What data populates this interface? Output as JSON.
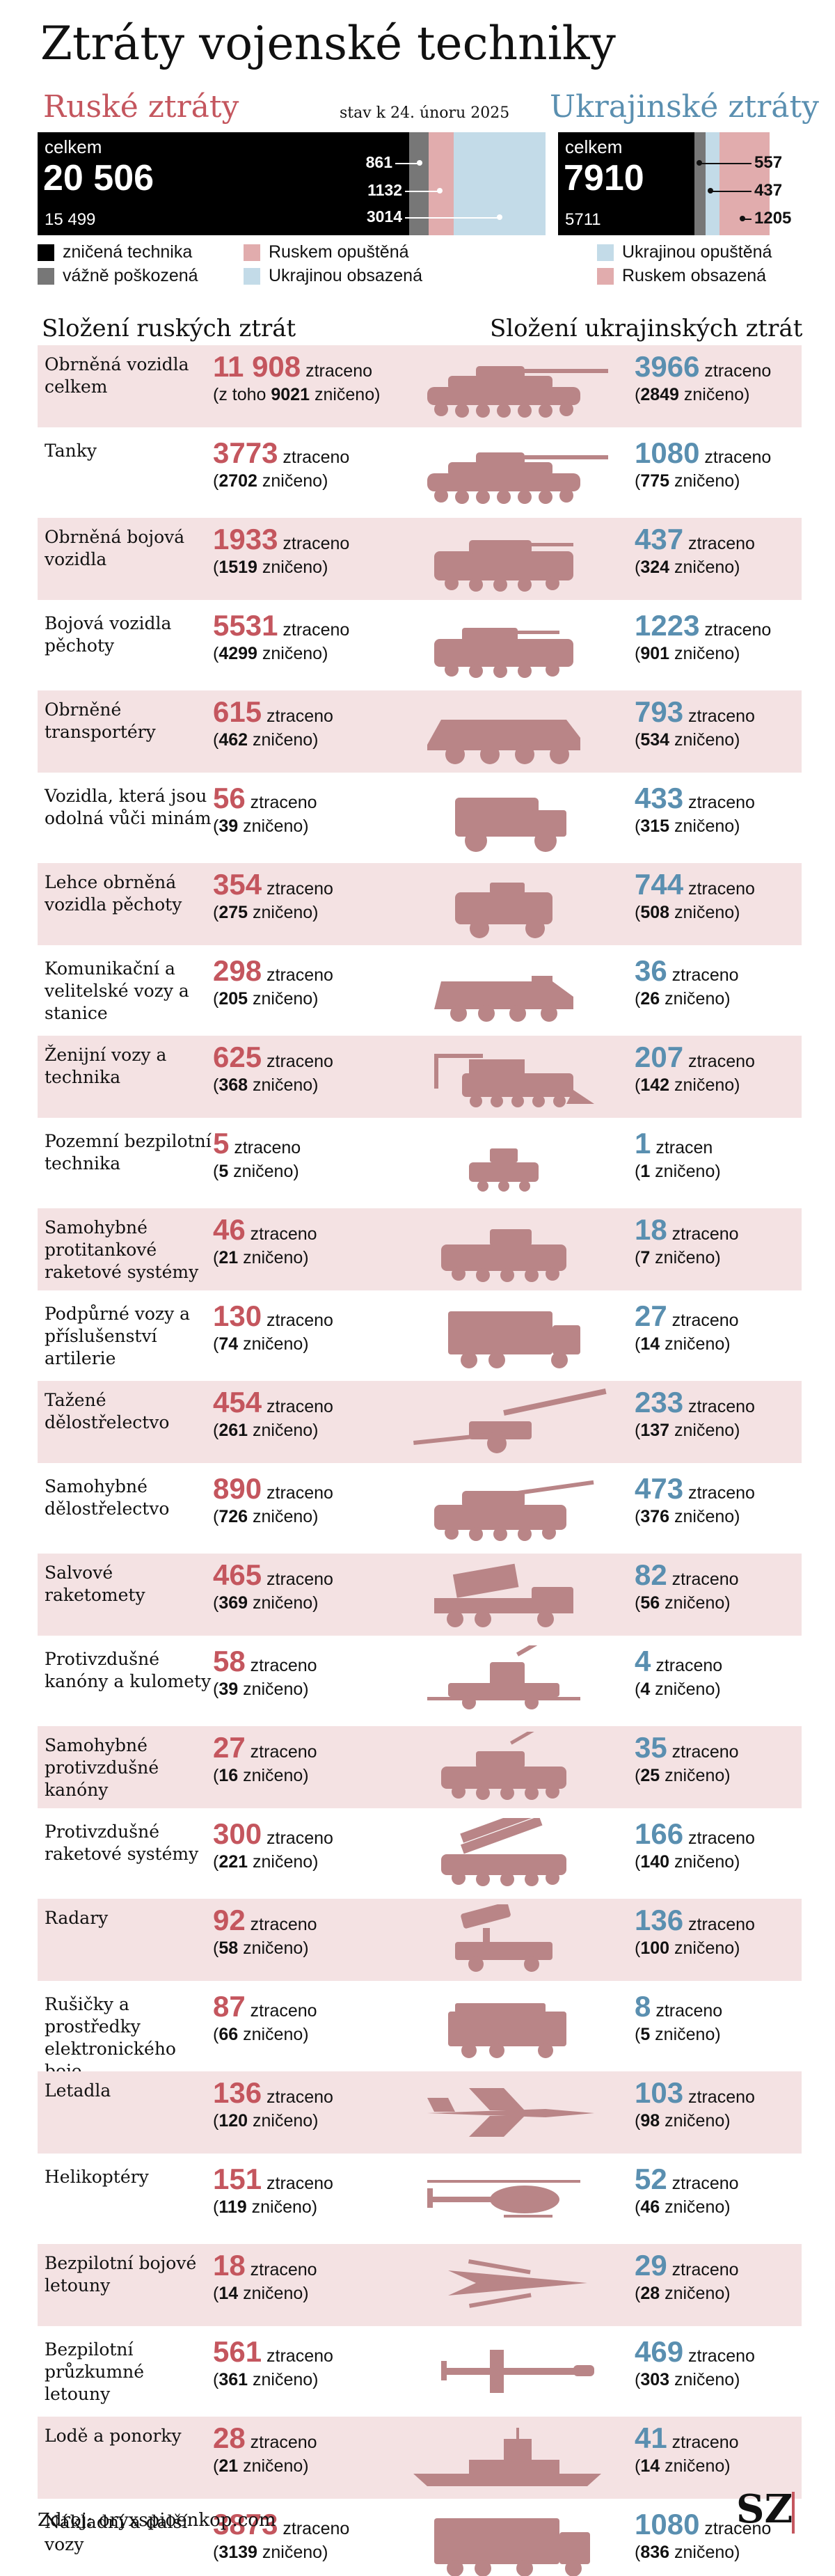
{
  "title": "Ztráty vojenské techniky",
  "as_of": "stav k 24. únoru 2025",
  "russia": {
    "heading": "Ruské ztráty",
    "total_label": "celkem",
    "total": "20 506",
    "destroyed": "15 499",
    "damaged": "861",
    "abandoned": "1132",
    "captured": "3014"
  },
  "ukraine": {
    "heading": "Ukrajinské ztráty",
    "total_label": "celkem",
    "total": "7910",
    "destroyed": "5711",
    "damaged": "557",
    "abandoned": "437",
    "captured": "1205"
  },
  "legend": {
    "destroyed": "zničená technika",
    "damaged": "vážně poškozená",
    "abandoned_ru": "Ruskem opuštěná",
    "captured_ru": "Ukrajinou obsazená",
    "abandoned_ua": "Ukrajinou opuštěná",
    "captured_ua": "Ruskem obsazená"
  },
  "colors": {
    "russia": "#c4565e",
    "ukraine": "#5a8fb0",
    "destroyed": "#000000",
    "damaged": "#777777",
    "abandoned_ru": "#e1acad",
    "captured_ru": "#c3dbe8",
    "row_band": "#f4e2e3",
    "icon": "#b98587"
  },
  "headers": {
    "ru": "Složení ruských ztrát",
    "ua": "Složení ukrajinských ztrát"
  },
  "chart_data": {
    "type": "table",
    "columns": [
      "kategorie",
      "Rusko ztraceno",
      "Rusko zničeno",
      "Ukrajina ztraceno",
      "Ukrajina zničeno"
    ],
    "rows": [
      {
        "cat": "Obrněná vozidla celkem",
        "icon": "tank-icon",
        "ru_lost": "11 908",
        "ru_destroyed": "9021",
        "ru_prefix": "(z toho ",
        "ru_suffix": " zničeno)",
        "ru_word": "ztraceno",
        "ua_lost": "3966",
        "ua_destroyed": "2849",
        "ua_word": "ztraceno"
      },
      {
        "cat": "Tanky",
        "icon": "tank-icon",
        "ru_lost": "3773",
        "ru_destroyed": "2702",
        "ru_word": "ztraceno",
        "ua_lost": "1080",
        "ua_destroyed": "775",
        "ua_word": "ztraceno"
      },
      {
        "cat": "Obrněná bojová vozidla",
        "icon": "armored-vehicle-icon",
        "ru_lost": "1933",
        "ru_destroyed": "1519",
        "ru_word": "ztraceno",
        "ua_lost": "437",
        "ua_destroyed": "324",
        "ua_word": "ztraceno"
      },
      {
        "cat": "Bojová vozidla pěchoty",
        "icon": "ifv-icon",
        "ru_lost": "5531",
        "ru_destroyed": "4299",
        "ru_word": "ztraceno",
        "ua_lost": "1223",
        "ua_destroyed": "901",
        "ua_word": "ztraceno"
      },
      {
        "cat": "Obrněné transportéry",
        "icon": "apc-icon",
        "ru_lost": "615",
        "ru_destroyed": "462",
        "ru_word": "ztraceno",
        "ua_lost": "793",
        "ua_destroyed": "534",
        "ua_word": "ztraceno"
      },
      {
        "cat": "Vozidla, která jsou odolná vůči minám",
        "icon": "mrap-icon",
        "ru_lost": "56",
        "ru_destroyed": "39",
        "ru_word": "ztraceno",
        "ua_lost": "433",
        "ua_destroyed": "315",
        "ua_word": "ztraceno"
      },
      {
        "cat": "Lehce obrněná vozidla pěchoty",
        "icon": "light-vehicle-icon",
        "ru_lost": "354",
        "ru_destroyed": "275",
        "ru_word": "ztraceno",
        "ua_lost": "744",
        "ua_destroyed": "508",
        "ua_word": "ztraceno"
      },
      {
        "cat": "Komunikační a velitelské vozy a stanice",
        "icon": "command-vehicle-icon",
        "ru_lost": "298",
        "ru_destroyed": "205",
        "ru_word": "ztraceno",
        "ua_lost": "36",
        "ua_destroyed": "26",
        "ua_word": "ztraceno"
      },
      {
        "cat": "Ženijní vozy a technika",
        "icon": "engineering-vehicle-icon",
        "ru_lost": "625",
        "ru_destroyed": "368",
        "ru_word": "ztraceno",
        "ua_lost": "207",
        "ua_destroyed": "142",
        "ua_word": "ztraceno"
      },
      {
        "cat": "Pozemní bezpilotní technika",
        "icon": "ugv-icon",
        "ru_lost": "5",
        "ru_destroyed": "5",
        "ru_word": "ztraceno",
        "ua_lost": "1",
        "ua_destroyed": "1",
        "ua_word": "ztracen"
      },
      {
        "cat": "Samohybné protitankové raketové systémy",
        "icon": "atgm-vehicle-icon",
        "ru_lost": "46",
        "ru_destroyed": "21",
        "ru_word": "ztraceno",
        "ua_lost": "18",
        "ua_destroyed": "7",
        "ua_word": "ztraceno"
      },
      {
        "cat": "Podpůrné vozy a příslušenství artilerie",
        "icon": "truck-icon",
        "ru_lost": "130",
        "ru_destroyed": "74",
        "ru_word": "ztraceno",
        "ua_lost": "27",
        "ua_destroyed": "14",
        "ua_word": "ztraceno"
      },
      {
        "cat": "Tažené dělostřelectvo",
        "icon": "towed-gun-icon",
        "ru_lost": "454",
        "ru_destroyed": "261",
        "ru_word": "ztraceno",
        "ua_lost": "233",
        "ua_destroyed": "137",
        "ua_word": "ztraceno"
      },
      {
        "cat": "Samohybné dělostřelectvo",
        "icon": "self-propelled-gun-icon",
        "ru_lost": "890",
        "ru_destroyed": "726",
        "ru_word": "ztraceno",
        "ua_lost": "473",
        "ua_destroyed": "376",
        "ua_word": "ztraceno"
      },
      {
        "cat": "Salvové raketomety",
        "icon": "rocket-launcher-icon",
        "ru_lost": "465",
        "ru_destroyed": "369",
        "ru_word": "ztraceno",
        "ua_lost": "82",
        "ua_destroyed": "56",
        "ua_word": "ztraceno"
      },
      {
        "cat": "Protivzdušné kanóny a kulomety",
        "icon": "aa-gun-icon",
        "ru_lost": "58",
        "ru_destroyed": "39",
        "ru_word": "ztraceno",
        "ua_lost": "4",
        "ua_destroyed": "4",
        "ua_word": "ztraceno"
      },
      {
        "cat": "Samohybné protivzdušné kanóny",
        "icon": "spaag-icon",
        "ru_lost": "27",
        "ru_destroyed": "16",
        "ru_word": "ztraceno",
        "ua_lost": "35",
        "ua_destroyed": "25",
        "ua_word": "ztraceno"
      },
      {
        "cat": "Protivzdušné raketové systémy",
        "icon": "sam-icon",
        "ru_lost": "300",
        "ru_destroyed": "221",
        "ru_word": "ztraceno",
        "ua_lost": "166",
        "ua_destroyed": "140",
        "ua_word": "ztraceno"
      },
      {
        "cat": "Radary",
        "icon": "radar-icon",
        "ru_lost": "92",
        "ru_destroyed": "58",
        "ru_word": "ztraceno",
        "ua_lost": "136",
        "ua_destroyed": "100",
        "ua_word": "ztraceno"
      },
      {
        "cat": "Rušičky a prostředky elektronického boje",
        "icon": "ew-vehicle-icon",
        "ru_lost": "87",
        "ru_destroyed": "66",
        "ru_word": "ztraceno",
        "ua_lost": "8",
        "ua_destroyed": "5",
        "ua_word": "ztraceno"
      },
      {
        "cat": "Letadla",
        "icon": "jet-icon",
        "ru_lost": "136",
        "ru_destroyed": "120",
        "ru_word": "ztraceno",
        "ua_lost": "103",
        "ua_destroyed": "98",
        "ua_word": "ztraceno"
      },
      {
        "cat": "Helikoptéry",
        "icon": "helicopter-icon",
        "ru_lost": "151",
        "ru_destroyed": "119",
        "ru_word": "ztraceno",
        "ua_lost": "52",
        "ua_destroyed": "46",
        "ua_word": "ztraceno"
      },
      {
        "cat": "Bezpilotní bojové letouny",
        "icon": "combat-drone-icon",
        "ru_lost": "18",
        "ru_destroyed": "14",
        "ru_word": "ztraceno",
        "ua_lost": "29",
        "ua_destroyed": "28",
        "ua_word": "ztraceno"
      },
      {
        "cat": "Bezpilotní průzkumné letouny",
        "icon": "recon-drone-icon",
        "ru_lost": "561",
        "ru_destroyed": "361",
        "ru_word": "ztraceno",
        "ua_lost": "469",
        "ua_destroyed": "303",
        "ua_word": "ztraceno"
      },
      {
        "cat": "Lodě a ponorky",
        "icon": "ship-icon",
        "ru_lost": "28",
        "ru_destroyed": "21",
        "ru_word": "ztraceno",
        "ua_lost": "41",
        "ua_destroyed": "14",
        "ua_word": "ztraceno"
      },
      {
        "cat": "Nákladní a další vozy",
        "icon": "cargo-truck-icon",
        "ru_lost": "3873",
        "ru_destroyed": "3139",
        "ru_word": "ztraceno",
        "ua_lost": "1080",
        "ua_destroyed": "836",
        "ua_word": "ztraceno"
      }
    ]
  },
  "source": "Zdroj: oryxspioenkop.com",
  "logo": "SZ"
}
